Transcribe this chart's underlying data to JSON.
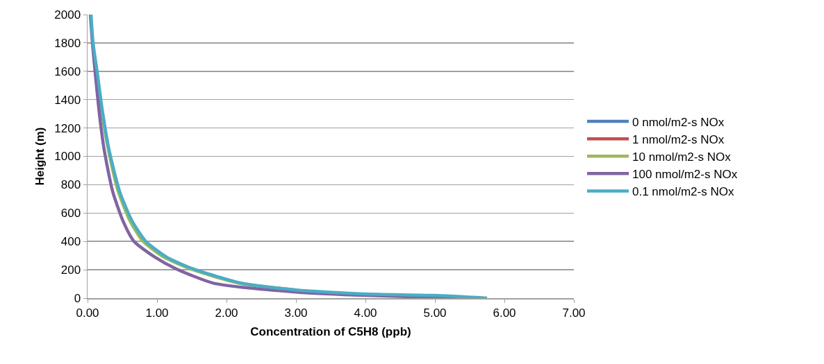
{
  "chart_data": {
    "type": "line",
    "xlabel": "Concentration of C5H8 (ppb)",
    "ylabel": "Height (m)",
    "xlim": [
      0,
      7
    ],
    "xticks": [
      {
        "value": 0,
        "label": "0.00"
      },
      {
        "value": 1,
        "label": "1.00"
      },
      {
        "value": 2,
        "label": "2.00"
      },
      {
        "value": 3,
        "label": "3.00"
      },
      {
        "value": 4,
        "label": "4.00"
      },
      {
        "value": 5,
        "label": "5.00"
      },
      {
        "value": 6,
        "label": "6.00"
      },
      {
        "value": 7,
        "label": "7.00"
      }
    ],
    "ylim": [
      0,
      2000
    ],
    "yticks": [
      0,
      200,
      400,
      600,
      800,
      1000,
      1200,
      1400,
      1600,
      1800,
      2000
    ],
    "grid": "y",
    "legend": "right",
    "marker": "none",
    "line_style": "solid",
    "series": [
      {
        "name": "0 nmol/m2-s NOx",
        "color": "#4f81bd",
        "x": [
          null,
          null,
          null,
          null,
          null,
          null,
          null,
          null,
          null,
          null,
          null,
          null,
          null,
          null,
          null
        ],
        "values": [
          null,
          null,
          null,
          null,
          null,
          null,
          null,
          null,
          null,
          null,
          null,
          null,
          null,
          null,
          null
        ]
      },
      {
        "name": "1 nmol/m2-s NOx",
        "color": "#c0504d",
        "x": [
          null,
          null,
          null,
          null,
          null,
          null,
          null,
          null,
          null,
          null,
          null,
          null,
          null,
          null,
          null
        ],
        "values": [
          null,
          null,
          null,
          null,
          null,
          null,
          null,
          null,
          null,
          null,
          null,
          null,
          null,
          null,
          null
        ]
      },
      {
        "name": "10 nmol/m2-s NOx",
        "color": "#9bbb59",
        "x": [
          null,
          null,
          null,
          3.0,
          2.17,
          1.47,
          1.1,
          0.8,
          0.61,
          0.44,
          0.3,
          0.21,
          0.13,
          null,
          null
        ],
        "values": [
          null,
          null,
          null,
          58,
          106,
          208,
          289,
          400,
          545,
          755,
          1045,
          1301,
          1590,
          null,
          null
        ]
      },
      {
        "name": "100 nmol/m2-s NOx",
        "color": "#8064a2",
        "x": [
          5.35,
          4.0,
          3.0,
          1.81,
          1.27,
          0.97,
          0.67,
          0.51,
          0.36,
          0.24,
          0.17,
          0.11,
          0.07,
          0.04
        ],
        "values": [
          0,
          19,
          43,
          106,
          208,
          289,
          400,
          545,
          755,
          1045,
          1301,
          1590,
          1800,
          2000
        ]
      },
      {
        "name": "0.1 nmol/m2-s NOx",
        "color": "#4bacc6",
        "x": [
          5.75,
          5.0,
          4.0,
          3.0,
          2.21,
          1.51,
          1.14,
          0.84,
          0.64,
          0.46,
          0.31,
          0.22,
          0.14,
          0.08,
          0.05
        ],
        "values": [
          0,
          19,
          29,
          58,
          106,
          208,
          289,
          400,
          545,
          755,
          1045,
          1301,
          1590,
          1800,
          2000
        ]
      }
    ]
  }
}
